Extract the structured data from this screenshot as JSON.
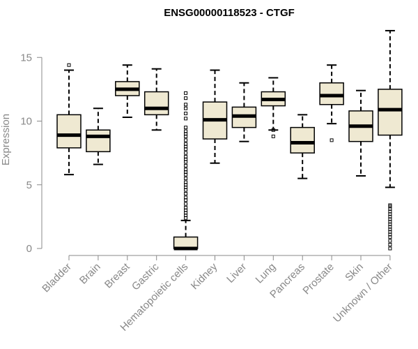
{
  "chart_data": {
    "type": "boxplot",
    "title": "ENSG00000118523 - CTGF",
    "ylabel": "Expression",
    "xlabel": "",
    "ylim": [
      0,
      17
    ],
    "yticks": [
      0,
      5,
      10,
      15
    ],
    "grid": false,
    "colors": {
      "box_fill": "#efe9d2",
      "axis": "#888888",
      "stroke": "#000000"
    },
    "categories": [
      "Bladder",
      "Brain",
      "Breast",
      "Gastric",
      "Hematopoietic cells",
      "Kidney",
      "Liver",
      "Lung",
      "Pancreas",
      "Prostate",
      "Skin",
      "Unknown / Other"
    ],
    "boxes": [
      {
        "category": "Bladder",
        "whisker_low": 5.8,
        "q1": 7.9,
        "median": 8.9,
        "q3": 10.5,
        "whisker_high": 14.0,
        "outliers": [
          14.4
        ]
      },
      {
        "category": "Brain",
        "whisker_low": 6.6,
        "q1": 7.6,
        "median": 8.8,
        "q3": 9.3,
        "whisker_high": 11.0,
        "outliers": []
      },
      {
        "category": "Breast",
        "whisker_low": 10.3,
        "q1": 12.0,
        "median": 12.5,
        "q3": 13.1,
        "whisker_high": 14.4,
        "outliers": []
      },
      {
        "category": "Gastric",
        "whisker_low": 9.3,
        "q1": 10.5,
        "median": 11.0,
        "q3": 12.3,
        "whisker_high": 14.1,
        "outliers": []
      },
      {
        "category": "Hematopoietic cells",
        "whisker_low": 0.0,
        "q1": 0.0,
        "median": 0.0,
        "q3": 0.9,
        "whisker_high": 2.2,
        "outliers": [
          2.4,
          2.6,
          2.8,
          3.0,
          3.2,
          3.5,
          3.8,
          4.0,
          4.3,
          4.6,
          4.8,
          5.0,
          5.2,
          5.5,
          5.8,
          6.0,
          6.2,
          6.5,
          6.8,
          7.0,
          7.2,
          7.5,
          7.8,
          8.0,
          8.2,
          8.5,
          8.8,
          9.0,
          9.2,
          9.5,
          10.2,
          10.6,
          11.0,
          11.3,
          11.8,
          12.2
        ]
      },
      {
        "category": "Kidney",
        "whisker_low": 6.7,
        "q1": 8.6,
        "median": 10.1,
        "q3": 11.5,
        "whisker_high": 14.0,
        "outliers": []
      },
      {
        "category": "Liver",
        "whisker_low": 8.4,
        "q1": 9.5,
        "median": 10.4,
        "q3": 11.1,
        "whisker_high": 13.0,
        "outliers": []
      },
      {
        "category": "Lung",
        "whisker_low": 9.3,
        "q1": 11.2,
        "median": 11.7,
        "q3": 12.3,
        "whisker_high": 13.4,
        "outliers": [
          9.3,
          8.8
        ]
      },
      {
        "category": "Pancreas",
        "whisker_low": 5.5,
        "q1": 7.5,
        "median": 8.3,
        "q3": 9.5,
        "whisker_high": 10.5,
        "outliers": []
      },
      {
        "category": "Prostate",
        "whisker_low": 9.8,
        "q1": 11.3,
        "median": 12.0,
        "q3": 13.0,
        "whisker_high": 14.4,
        "outliers": [
          8.5
        ]
      },
      {
        "category": "Skin",
        "whisker_low": 5.7,
        "q1": 8.4,
        "median": 9.6,
        "q3": 10.8,
        "whisker_high": 12.4,
        "outliers": []
      },
      {
        "category": "Unknown / Other",
        "whisker_low": 4.8,
        "q1": 8.9,
        "median": 10.9,
        "q3": 12.5,
        "whisker_high": 17.1,
        "outliers": [
          0.0,
          0.3,
          0.6,
          0.9,
          1.1,
          1.3,
          1.5,
          1.7,
          1.9,
          2.1,
          2.3,
          2.5,
          2.7,
          2.9,
          3.1,
          3.3,
          3.4
        ]
      }
    ]
  }
}
